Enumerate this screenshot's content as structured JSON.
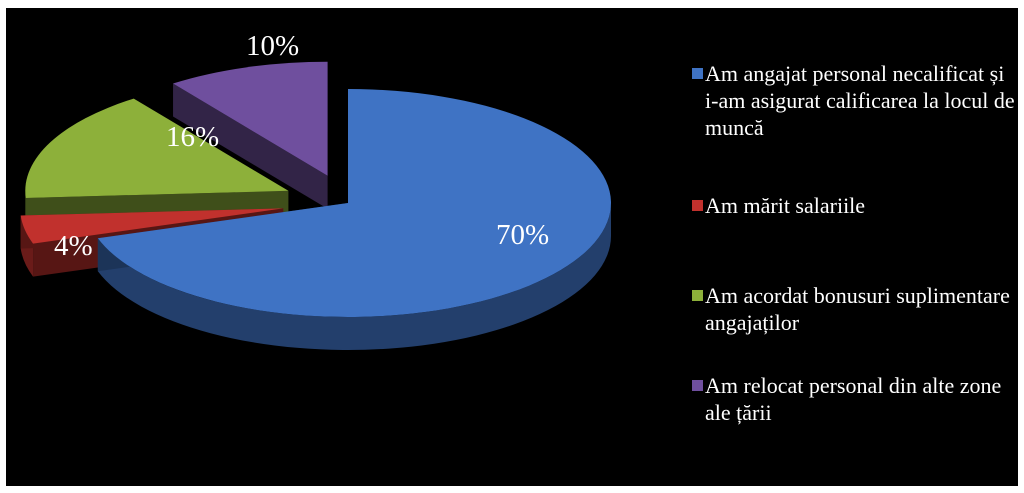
{
  "chart_data": {
    "type": "pie",
    "three_d": true,
    "legend_position": "right",
    "title": "",
    "slices": [
      {
        "label": "Am angajat personal necalificat și i-am asigurat calificarea la locul de muncă",
        "value": 70,
        "display": "70%",
        "color": "#3f73c4"
      },
      {
        "label": "Am mărit salariile",
        "value": 4,
        "display": "4%",
        "color": "#c1312d"
      },
      {
        "label": "Am acordat bonusuri suplimentare angajaților",
        "value": 16,
        "display": "16%",
        "color": "#8db03a"
      },
      {
        "label": "Am relocat personal din alte zone ale țării",
        "value": 10,
        "display": "10%",
        "color": "#6f4f9e"
      }
    ]
  }
}
